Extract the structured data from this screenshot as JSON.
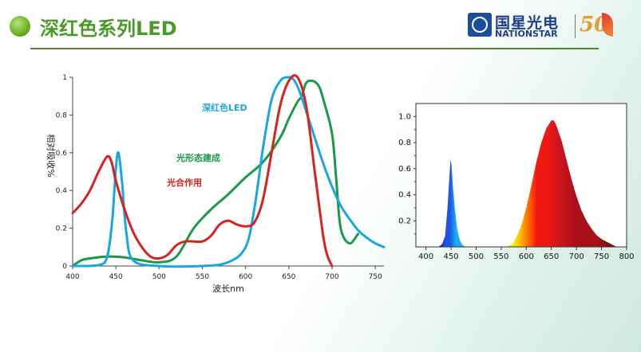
{
  "header": {
    "title": "深红色系列LED",
    "logo_cn": "国星光电",
    "logo_en": "NATIONSTAR",
    "logo_badge": "50"
  },
  "colors": {
    "title_green": "#4a9a2a",
    "series_blue": "#1aa7e0",
    "series_green": "#1a9a48",
    "series_red": "#d8221e"
  },
  "chart_data": [
    {
      "type": "line",
      "xlabel": "波长nm",
      "ylabel": "相对吸收%",
      "xlim": [
        400,
        760
      ],
      "ylim": [
        0,
        1
      ],
      "xticks": [
        "400",
        "450",
        "500",
        "550",
        "600",
        "650",
        "700",
        "750"
      ],
      "yticks": [
        "0",
        "0.2",
        "0.4",
        "0.6",
        "0.8",
        "1"
      ],
      "series": [
        {
          "name": "深红色LED",
          "color": "#1aa7e0",
          "x": [
            400,
            430,
            440,
            446,
            450,
            453,
            457,
            462,
            470,
            500,
            550,
            580,
            600,
            610,
            620,
            630,
            640,
            648,
            655,
            662,
            670,
            680,
            690,
            700,
            710,
            720,
            730,
            740,
            750,
            760
          ],
          "y": [
            0.0,
            0.005,
            0.05,
            0.25,
            0.52,
            0.6,
            0.45,
            0.18,
            0.03,
            0.0,
            0.0,
            0.02,
            0.1,
            0.3,
            0.62,
            0.88,
            0.98,
            1.0,
            0.99,
            0.93,
            0.82,
            0.68,
            0.54,
            0.42,
            0.32,
            0.25,
            0.19,
            0.15,
            0.12,
            0.1
          ]
        },
        {
          "name": "光形态建成",
          "color": "#1a9a48",
          "x": [
            400,
            410,
            420,
            440,
            460,
            480,
            500,
            520,
            540,
            560,
            580,
            600,
            620,
            640,
            650,
            660,
            665,
            670,
            678,
            685,
            690,
            700,
            705,
            710,
            720,
            730
          ],
          "y": [
            0.0,
            0.03,
            0.04,
            0.05,
            0.045,
            0.03,
            0.02,
            0.05,
            0.2,
            0.3,
            0.38,
            0.47,
            0.55,
            0.68,
            0.78,
            0.87,
            0.9,
            0.97,
            0.98,
            0.95,
            0.88,
            0.7,
            0.45,
            0.2,
            0.12,
            0.17
          ]
        },
        {
          "name": "光合作用",
          "color": "#d8221e",
          "x": [
            400,
            410,
            420,
            430,
            440,
            445,
            450,
            460,
            470,
            480,
            490,
            500,
            510,
            520,
            530,
            540,
            550,
            560,
            570,
            580,
            590,
            600,
            610,
            620,
            630,
            640,
            650,
            660,
            670,
            680,
            690,
            695,
            700
          ],
          "y": [
            0.28,
            0.33,
            0.4,
            0.5,
            0.58,
            0.55,
            0.45,
            0.3,
            0.18,
            0.1,
            0.05,
            0.04,
            0.06,
            0.11,
            0.13,
            0.13,
            0.13,
            0.16,
            0.22,
            0.24,
            0.22,
            0.21,
            0.23,
            0.35,
            0.6,
            0.85,
            0.98,
            1.0,
            0.85,
            0.5,
            0.15,
            0.05,
            0.0
          ]
        }
      ],
      "annotations": [
        "深红色LED",
        "光形态建成",
        "光合作用"
      ]
    },
    {
      "type": "area",
      "xlim": [
        380,
        800
      ],
      "ylim": [
        0,
        1.1
      ],
      "xticks": [
        "400",
        "450",
        "500",
        "550",
        "600",
        "650",
        "700",
        "750",
        "800"
      ],
      "yticks": [
        "0.2",
        "0.4",
        "0.6",
        "0.8",
        "1.0"
      ],
      "x": [
        425,
        432,
        438,
        443,
        447,
        449,
        451,
        454,
        458,
        462,
        466,
        470,
        474,
        480,
        560,
        572,
        580,
        590,
        600,
        610,
        620,
        630,
        640,
        650,
        655,
        660,
        670,
        680,
        690,
        700,
        710,
        720,
        730,
        740,
        750,
        760,
        770,
        780
      ],
      "y": [
        0.0,
        0.02,
        0.08,
        0.3,
        0.55,
        0.67,
        0.63,
        0.45,
        0.28,
        0.15,
        0.07,
        0.03,
        0.01,
        0.0,
        0.0,
        0.02,
        0.07,
        0.16,
        0.3,
        0.47,
        0.65,
        0.8,
        0.91,
        0.97,
        0.97,
        0.93,
        0.82,
        0.67,
        0.52,
        0.39,
        0.28,
        0.2,
        0.14,
        0.09,
        0.06,
        0.04,
        0.02,
        0.0
      ]
    }
  ]
}
